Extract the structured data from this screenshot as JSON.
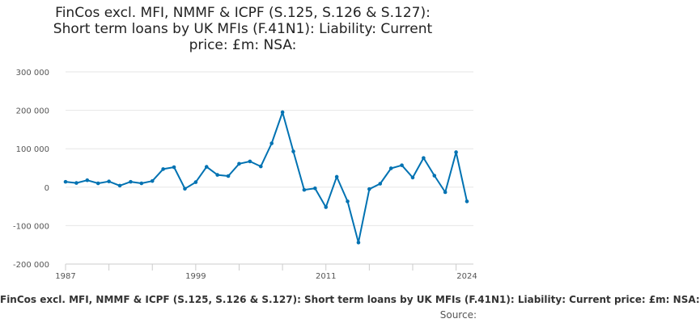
{
  "chart_data": {
    "type": "line",
    "title": "FinCos excl. MFI, NMMF & ICPF (S.125, S.126 & S.127):\nShort term loans by UK MFIs (F.41N1): Liability: Current\nprice: £m: NSA:",
    "series": [
      {
        "name": "FinCos excl. MFI, NMMF & ICPF (S.125, S.126 & S.127): Short term loans by UK MFIs (F.41N1): Liability: Current price: £m: NSA:",
        "color": "#0072b2",
        "values": [
          [
            1987,
            14000
          ],
          [
            1988,
            11000
          ],
          [
            1989,
            18000
          ],
          [
            1990,
            10000
          ],
          [
            1991,
            15000
          ],
          [
            1992,
            4000
          ],
          [
            1993,
            14000
          ],
          [
            1994,
            10000
          ],
          [
            1995,
            16000
          ],
          [
            1996,
            47000
          ],
          [
            1997,
            52000
          ],
          [
            1998,
            -4000
          ],
          [
            1999,
            13000
          ],
          [
            2000,
            53000
          ],
          [
            2001,
            32000
          ],
          [
            2002,
            29000
          ],
          [
            2003,
            61000
          ],
          [
            2004,
            67000
          ],
          [
            2005,
            54000
          ],
          [
            2006,
            114000
          ],
          [
            2007,
            195000
          ],
          [
            2008,
            93000
          ],
          [
            2009,
            -7000
          ],
          [
            2010,
            -3000
          ],
          [
            2011,
            -52000
          ],
          [
            2012,
            27000
          ],
          [
            2013,
            -37000
          ],
          [
            2014,
            -144000
          ],
          [
            2015,
            -5000
          ],
          [
            2016,
            9000
          ],
          [
            2017,
            49000
          ],
          [
            2018,
            57000
          ],
          [
            2019,
            25000
          ],
          [
            2020,
            76000
          ],
          [
            2021,
            30000
          ],
          [
            2022,
            -13000
          ],
          [
            2023,
            91000
          ],
          [
            2024,
            -37000
          ]
        ]
      }
    ],
    "xticks": [
      {
        "value": 1987,
        "label": "1987"
      },
      {
        "value": 1999,
        "label": "1999"
      },
      {
        "value": 2011,
        "label": "2011"
      },
      {
        "value": 2024,
        "label": "2024"
      }
    ],
    "yticks": [
      {
        "value": 300000,
        "label": "300 000"
      },
      {
        "value": 200000,
        "label": "200 000"
      },
      {
        "value": 100000,
        "label": "100 000"
      },
      {
        "value": 0,
        "label": "0"
      },
      {
        "value": -100000,
        "label": "-100 000"
      },
      {
        "value": -200000,
        "label": "-200 000"
      }
    ],
    "xlim": [
      1987,
      2024
    ],
    "ylim": [
      -200000,
      300000
    ],
    "grid": "horizontal",
    "legend_position": "bottom",
    "source_label": "Source:"
  }
}
